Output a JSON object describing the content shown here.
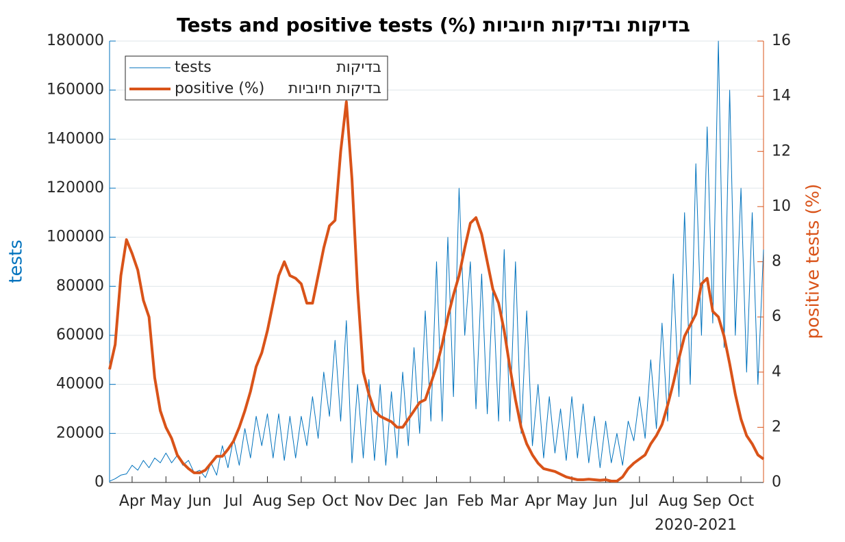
{
  "chart_data": {
    "type": "line",
    "title": "Tests and positive tests (%) בדיקות ובדיקות חיוביות",
    "xlabel": "2020-2021",
    "ylabel": "tests",
    "y2label": "positive tests (%)",
    "categories": [
      null,
      null,
      null,
      null,
      "Apr",
      null,
      null,
      null,
      null,
      null,
      "May",
      null,
      null,
      null,
      null,
      null,
      "Jun",
      null,
      null,
      null,
      null,
      null,
      "Jul",
      null,
      null,
      null,
      null,
      null,
      "Aug",
      null,
      null,
      null,
      null,
      null,
      "Sep",
      null,
      null,
      null,
      null,
      null,
      "Oct",
      null,
      null,
      null,
      null,
      null,
      "Nov",
      null,
      null,
      null,
      null,
      null,
      "Dec",
      null,
      null,
      null,
      null,
      null,
      "Jan",
      null,
      null,
      null,
      null,
      null,
      "Feb",
      null,
      null,
      null,
      null,
      null,
      "Mar",
      null,
      null,
      null,
      null,
      null,
      "Apr",
      null,
      null,
      null,
      null,
      null,
      "May",
      null,
      null,
      null,
      null,
      null,
      "Jun",
      null,
      null,
      null,
      null,
      null,
      "Jul",
      null,
      null,
      null,
      null,
      null,
      "Aug",
      null,
      null,
      null,
      null,
      null,
      "Sep",
      null,
      null,
      null,
      null,
      null,
      "Oct",
      null,
      null,
      null,
      null
    ],
    "series": [
      {
        "name": "tests",
        "name_he": "בדיקות",
        "color": "#0072BD",
        "width": 1,
        "values": [
          500,
          1500,
          3000,
          3500,
          7000,
          5000,
          9000,
          6000,
          10000,
          8000,
          12000,
          8000,
          11000,
          7000,
          9000,
          4000,
          5000,
          2000,
          8000,
          3000,
          15000,
          6000,
          18000,
          7000,
          22000,
          10000,
          27000,
          15000,
          28000,
          10000,
          28000,
          9000,
          27000,
          10000,
          27000,
          15000,
          35000,
          18000,
          45000,
          27000,
          58000,
          25000,
          66000,
          8000,
          40000,
          10000,
          42000,
          9000,
          40000,
          7000,
          37000,
          10000,
          45000,
          15000,
          55000,
          20000,
          70000,
          25000,
          90000,
          25000,
          100000,
          35000,
          120000,
          60000,
          90000,
          30000,
          85000,
          28000,
          80000,
          25000,
          95000,
          25000,
          90000,
          20000,
          70000,
          15000,
          40000,
          10000,
          35000,
          12000,
          30000,
          9000,
          35000,
          10000,
          32000,
          8000,
          27000,
          6000,
          25000,
          8000,
          20000,
          7000,
          25000,
          17000,
          35000,
          18000,
          50000,
          22000,
          65000,
          25000,
          85000,
          35000,
          110000,
          40000,
          130000,
          60000,
          145000,
          65000,
          180000,
          55000,
          160000,
          60000,
          120000,
          45000,
          110000,
          40000,
          95000
        ]
      },
      {
        "name": "positive (%)",
        "name_he": "בדיקות חיוביות",
        "color": "#D95319",
        "width": 4,
        "axis": "y2",
        "values": [
          4.1,
          5,
          7.5,
          8.8,
          8.3,
          7.7,
          6.6,
          6.0,
          3.8,
          2.6,
          2.0,
          1.6,
          1.0,
          0.7,
          0.5,
          0.35,
          0.35,
          0.45,
          0.7,
          0.95,
          0.95,
          1.2,
          1.5,
          2.0,
          2.6,
          3.3,
          4.2,
          4.7,
          5.5,
          6.5,
          7.5,
          8.0,
          7.5,
          7.4,
          7.2,
          6.5,
          6.5,
          7.5,
          8.5,
          9.3,
          9.5,
          12.0,
          13.8,
          11.0,
          7.0,
          4.0,
          3.2,
          2.6,
          2.4,
          2.3,
          2.2,
          2.0,
          2.0,
          2.3,
          2.6,
          2.9,
          3.0,
          3.6,
          4.2,
          5.0,
          6.0,
          6.8,
          7.5,
          8.5,
          9.4,
          9.6,
          9.0,
          8.0,
          7.0,
          6.5,
          5.5,
          4.2,
          3.0,
          2.0,
          1.4,
          1.0,
          0.7,
          0.5,
          0.45,
          0.4,
          0.3,
          0.2,
          0.15,
          0.1,
          0.1,
          0.12,
          0.1,
          0.08,
          0.1,
          0.05,
          0.05,
          0.2,
          0.5,
          0.7,
          0.85,
          1.0,
          1.4,
          1.7,
          2.1,
          2.8,
          3.6,
          4.5,
          5.3,
          5.7,
          6.1,
          7.2,
          7.4,
          6.2,
          6.0,
          5.3,
          4.3,
          3.2,
          2.3,
          1.7,
          1.4,
          1.0,
          0.85
        ]
      }
    ],
    "ylim": [
      0,
      180000
    ],
    "yticks": [
      0,
      20000,
      40000,
      60000,
      80000,
      100000,
      120000,
      140000,
      160000,
      180000
    ],
    "y2lim": [
      0,
      16
    ],
    "y2ticks": [
      0,
      2,
      4,
      6,
      8,
      10,
      12,
      14,
      16
    ],
    "ycolor": "#0072BD",
    "y2color": "#D95319",
    "grid": true
  }
}
